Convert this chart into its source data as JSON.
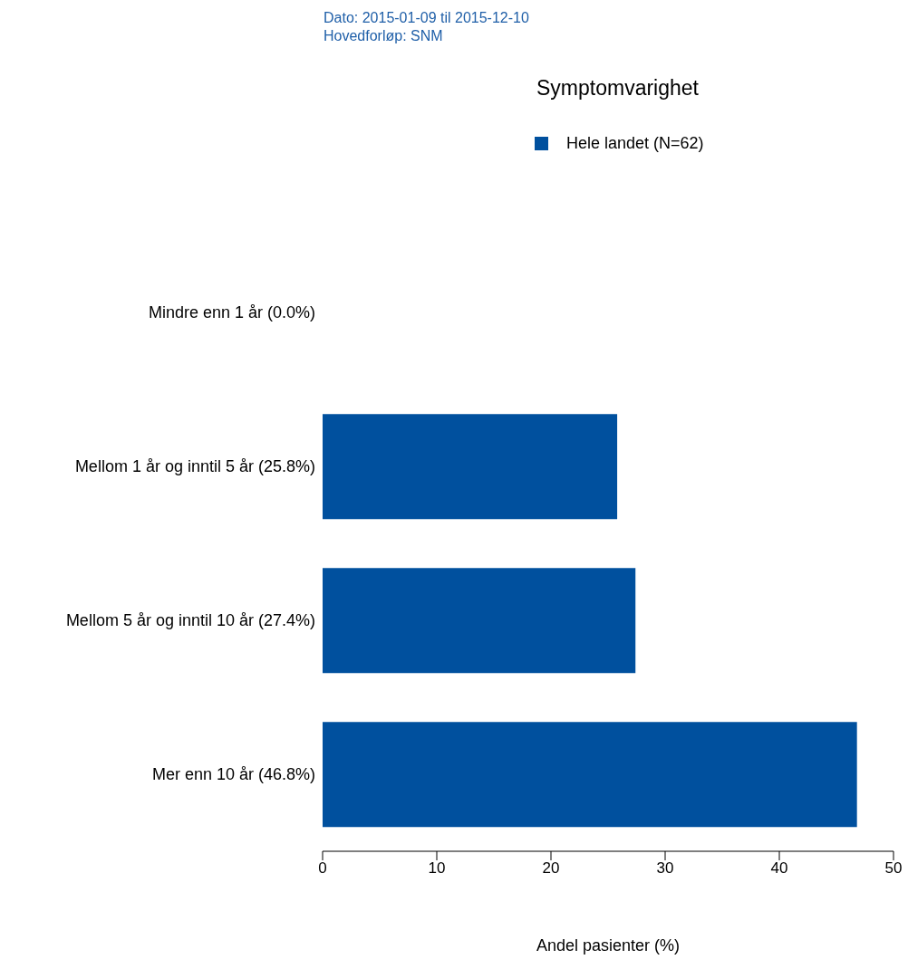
{
  "chart_data": {
    "type": "bar",
    "orientation": "horizontal",
    "title": "Symptomvarighet",
    "xlabel": "Andel pasienter (%)",
    "annotations": [
      "Dato: 2015-01-09 til 2015-12-10",
      "Hovedforløp: SNM"
    ],
    "categories": [
      "Mindre enn 1 år (0.0%)",
      "Mellom 1 år og inntil 5 år (25.8%)",
      "Mellom 5 år og inntil 10 år (27.4%)",
      "Mer enn 10 år (46.8%)"
    ],
    "series": [
      {
        "name": "Hele landet (N=62)",
        "color": "#00509e",
        "values": [
          0,
          25.8,
          27.4,
          46.8
        ]
      }
    ],
    "xlim": [
      0,
      50
    ],
    "xticks": [
      0,
      10,
      20,
      30,
      40,
      50
    ],
    "grid": false,
    "legend": "top"
  }
}
